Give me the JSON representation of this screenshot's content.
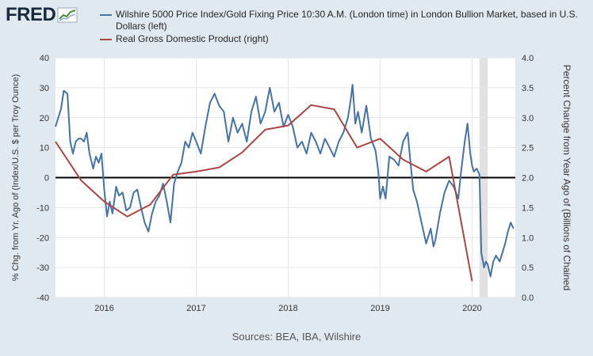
{
  "header": {
    "logo_text": "FRED",
    "logo_icon": "chart-line-icon"
  },
  "legend": [
    {
      "label": "Wilshire 5000 Price Index/Gold Fixing Price 10:30 A.M. (London time) in London Bullion Market, based in U.S. Dollars (left)",
      "color": "#4572a7"
    },
    {
      "label": "Real Gross Domestic Product (right)",
      "color": "#aa4643"
    }
  ],
  "source": "Sources: BEA, IBA, Wilshire",
  "colors": {
    "background": "#e1e9f0",
    "plot": "#ffffff",
    "grid": "#e6e6e6",
    "recession": "#e1e1e1",
    "zero_line": "#000000"
  },
  "chart_data": {
    "type": "line",
    "title": "",
    "xlabel": "",
    "ylabel_left": "% Chg. from Yr. Ago of (Index/U.S. $ per Troy Ounce)",
    "ylabel_right": "Percent Change from Year Ago of (Billions of Chained",
    "xlim": [
      2015.47,
      2020.47
    ],
    "ylim_left": [
      -40,
      40
    ],
    "ylim_right": [
      0.0,
      4.0
    ],
    "x_ticks": [
      "2016",
      "2017",
      "2018",
      "2019",
      "2020"
    ],
    "x_tick_values": [
      2016,
      2017,
      2018,
      2019,
      2020
    ],
    "y_ticks_left": [
      "-40",
      "-30",
      "-20",
      "-10",
      "0",
      "10",
      "20",
      "30",
      "40"
    ],
    "y_ticks_right": [
      "0.0",
      "0.5",
      "1.0",
      "1.5",
      "2.0",
      "2.5",
      "3.0",
      "3.5",
      "4.0"
    ],
    "recession": [
      2020.08,
      2020.17
    ],
    "series": [
      {
        "name": "Wilshire 5000 Price Index/Gold Fixing Price 10:30 A.M. (London time) in London Bullion Market, based in U.S. Dollars (left)",
        "axis": "left",
        "x": [
          2015.47,
          2015.5,
          2015.53,
          2015.56,
          2015.6,
          2015.63,
          2015.66,
          2015.69,
          2015.72,
          2015.75,
          2015.78,
          2015.81,
          2015.84,
          2015.88,
          2015.91,
          2015.94,
          2015.97,
          2016.0,
          2016.03,
          2016.06,
          2016.09,
          2016.13,
          2016.16,
          2016.2,
          2016.24,
          2016.28,
          2016.32,
          2016.36,
          2016.4,
          2016.44,
          2016.48,
          2016.52,
          2016.56,
          2016.6,
          2016.64,
          2016.68,
          2016.72,
          2016.76,
          2016.8,
          2016.84,
          2016.88,
          2016.92,
          2016.96,
          2017.0,
          2017.05,
          2017.1,
          2017.15,
          2017.2,
          2017.25,
          2017.3,
          2017.35,
          2017.4,
          2017.45,
          2017.5,
          2017.55,
          2017.6,
          2017.65,
          2017.7,
          2017.75,
          2017.8,
          2017.85,
          2017.9,
          2017.95,
          2018.0,
          2018.05,
          2018.1,
          2018.15,
          2018.2,
          2018.25,
          2018.3,
          2018.35,
          2018.4,
          2018.45,
          2018.5,
          2018.55,
          2018.6,
          2018.65,
          2018.68,
          2018.7,
          2018.73,
          2018.76,
          2018.8,
          2018.85,
          2018.9,
          2018.95,
          2018.98,
          2019.0,
          2019.03,
          2019.06,
          2019.1,
          2019.15,
          2019.2,
          2019.25,
          2019.3,
          2019.33,
          2019.36,
          2019.4,
          2019.45,
          2019.5,
          2019.55,
          2019.58,
          2019.6,
          2019.65,
          2019.7,
          2019.75,
          2019.8,
          2019.85,
          2019.88,
          2019.92,
          2019.95,
          2019.98,
          2020.0,
          2020.02,
          2020.05,
          2020.08,
          2020.1,
          2020.13,
          2020.15,
          2020.17,
          2020.2,
          2020.23,
          2020.26,
          2020.3,
          2020.33,
          2020.36,
          2020.39,
          2020.42,
          2020.45
        ],
        "values": [
          17,
          20,
          23,
          29,
          28,
          12,
          8,
          12,
          13,
          13,
          12,
          15,
          8,
          3,
          7,
          5,
          8,
          -4,
          -13,
          -8,
          -12,
          -3,
          -6,
          -5,
          -11,
          -10,
          -5,
          -4,
          -10,
          -15,
          -18,
          -12,
          -8,
          -6,
          -2,
          -8,
          -15,
          -2,
          2,
          5,
          12,
          10,
          15,
          12,
          8,
          17,
          25,
          28,
          24,
          22,
          12,
          20,
          15,
          18,
          12,
          22,
          27,
          18,
          22,
          30,
          22,
          25,
          17,
          21,
          17,
          10,
          12,
          8,
          15,
          12,
          8,
          13,
          10,
          7,
          12,
          15,
          20,
          26,
          31,
          18,
          22,
          15,
          24,
          13,
          9,
          2,
          -7,
          -3,
          -7,
          7,
          6,
          4,
          12,
          15,
          5,
          -4,
          -8,
          -15,
          -22,
          -17,
          -23,
          -21,
          -12,
          -5,
          -1,
          -3,
          -7,
          2,
          12,
          18,
          8,
          4,
          2,
          3,
          1,
          -25,
          -30,
          -28,
          -29,
          -33,
          -28,
          -26,
          -28,
          -25,
          -22,
          -18,
          -15,
          -17
        ]
      },
      {
        "name": "Real Gross Domestic Product (right)",
        "axis": "right",
        "x": [
          2015.47,
          2015.75,
          2016.0,
          2016.25,
          2016.5,
          2016.75,
          2017.0,
          2017.25,
          2017.5,
          2017.75,
          2018.0,
          2018.25,
          2018.5,
          2018.75,
          2019.0,
          2019.25,
          2019.5,
          2019.75,
          2020.0
        ],
        "values": [
          2.6,
          1.95,
          1.6,
          1.35,
          1.55,
          2.05,
          2.1,
          2.17,
          2.42,
          2.8,
          2.87,
          3.21,
          3.14,
          2.5,
          2.65,
          2.3,
          2.1,
          2.35,
          0.27
        ]
      }
    ]
  }
}
